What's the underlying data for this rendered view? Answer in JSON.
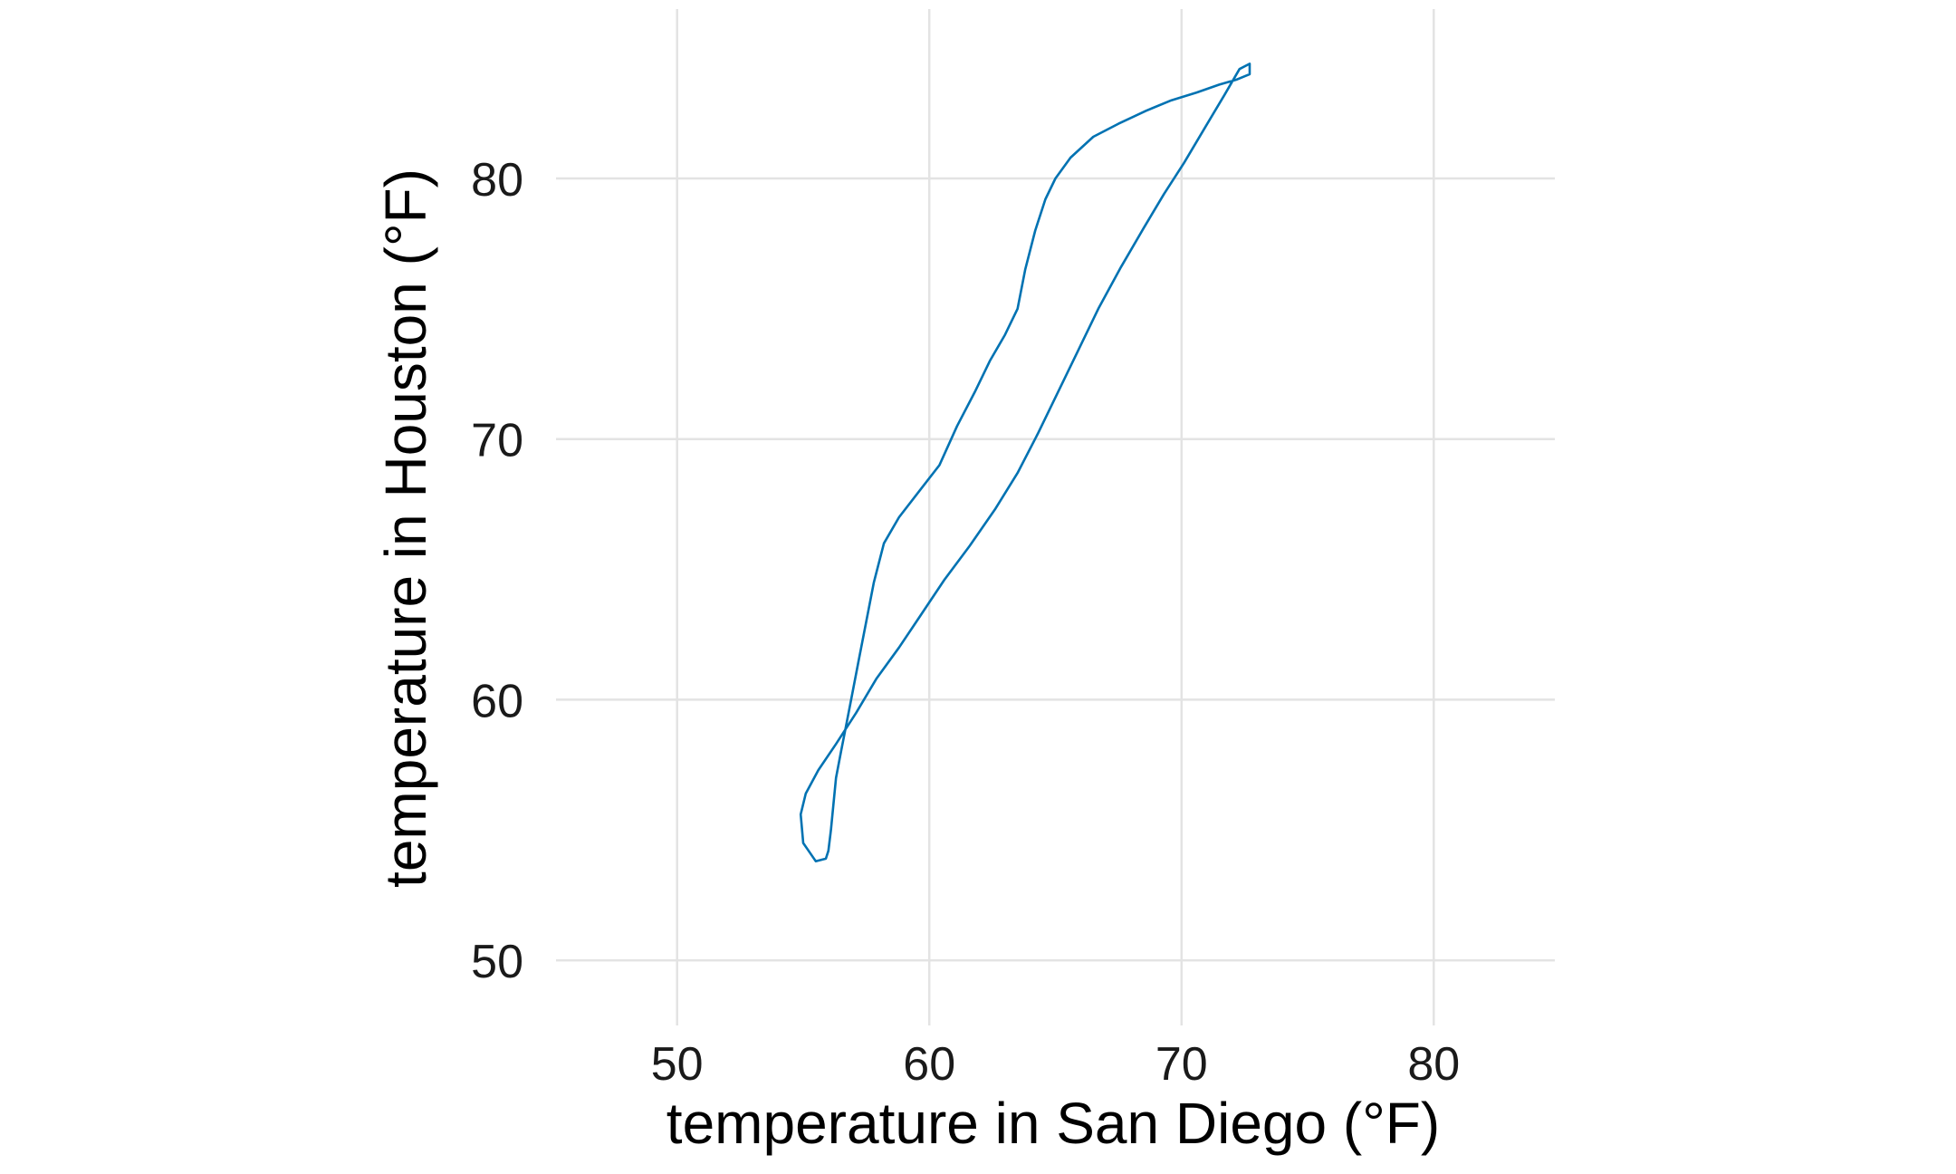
{
  "chart_data": {
    "type": "line",
    "title": "",
    "xlabel": "temperature in San Diego (°F)",
    "ylabel": "temperature in Houston (°F)",
    "xlim": [
      45.2,
      84.8
    ],
    "ylim": [
      47.5,
      86.5
    ],
    "x_ticks": [
      "50",
      "60",
      "70",
      "80"
    ],
    "y_ticks": [
      "50",
      "60",
      "70",
      "80"
    ],
    "grid": true,
    "legend": "none",
    "line_color": "#0072B2",
    "series": [
      {
        "x": [
          55.5,
          55.0,
          54.9,
          55.1,
          55.6,
          56.3,
          57.1,
          57.9,
          58.8,
          59.7,
          60.6,
          61.6,
          62.6,
          63.5,
          64.3,
          65.1,
          65.9,
          66.7,
          67.6,
          68.5,
          69.3,
          70.1,
          70.9,
          71.7,
          72.3,
          72.7,
          72.7,
          72.2,
          71.5,
          70.6,
          69.6,
          68.6,
          67.5,
          66.5,
          65.6,
          65.0,
          64.6,
          64.2,
          63.8,
          63.5,
          63.0,
          62.4,
          61.8,
          61.1,
          60.4,
          59.6,
          58.8,
          58.2,
          57.8,
          57.5,
          57.2,
          56.9,
          56.7,
          56.5,
          56.3,
          56.2,
          56.1,
          56.0,
          55.9,
          55.5
        ],
        "y": [
          53.8,
          54.5,
          55.6,
          56.4,
          57.3,
          58.3,
          59.5,
          60.8,
          62.0,
          63.3,
          64.6,
          65.9,
          67.3,
          68.7,
          70.2,
          71.8,
          73.4,
          75.0,
          76.6,
          78.1,
          79.4,
          80.6,
          81.9,
          83.2,
          84.2,
          84.4,
          84.0,
          83.8,
          83.6,
          83.3,
          83.0,
          82.6,
          82.1,
          81.6,
          80.8,
          80.0,
          79.2,
          78.0,
          76.5,
          75.0,
          74.0,
          73.0,
          71.8,
          70.5,
          69.0,
          68.0,
          67.0,
          66.0,
          64.5,
          63.0,
          61.5,
          60.0,
          59.0,
          58.0,
          57.0,
          56.0,
          55.0,
          54.2,
          53.9,
          53.8
        ]
      }
    ]
  }
}
